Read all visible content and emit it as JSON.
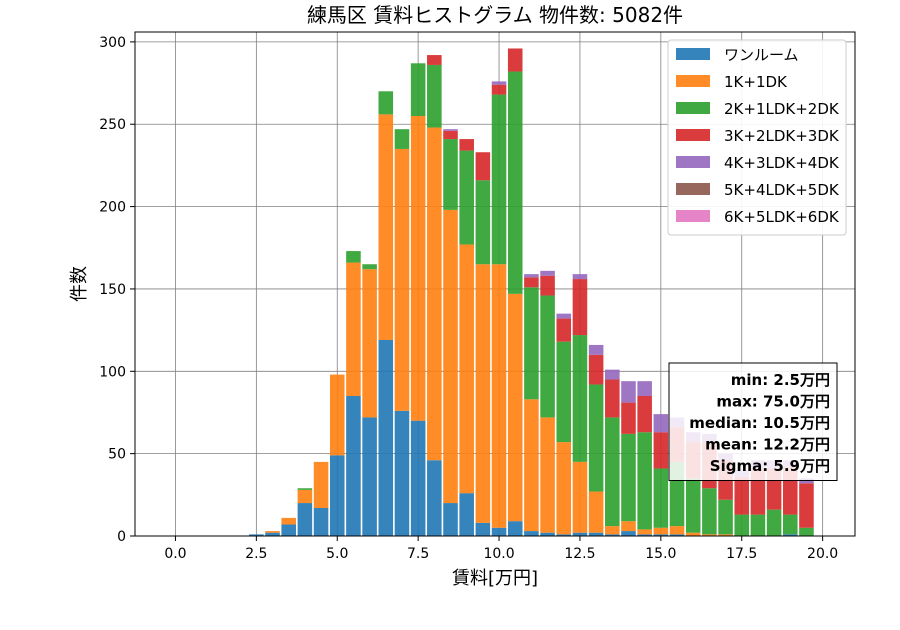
{
  "chart_data": {
    "type": "bar",
    "stacked": true,
    "title": "練馬区 賃料ヒストグラム 物件数: 5082件",
    "xlabel": "賃料[万円]",
    "ylabel": "件数",
    "xlim": [
      -1.25,
      21.0
    ],
    "ylim": [
      0,
      306
    ],
    "xticks": [
      0.0,
      2.5,
      5.0,
      7.5,
      10.0,
      12.5,
      15.0,
      17.5,
      20.0
    ],
    "xtick_labels": [
      "0.0",
      "2.5",
      "5.0",
      "7.5",
      "10.0",
      "12.5",
      "15.0",
      "17.5",
      "20.0"
    ],
    "yticks": [
      0,
      50,
      100,
      150,
      200,
      250,
      300
    ],
    "ytick_labels": [
      "0",
      "50",
      "100",
      "150",
      "200",
      "250",
      "300"
    ],
    "grid": true,
    "legend_position": "top-right",
    "bin_width": 0.5,
    "x": [
      2.5,
      3.0,
      3.5,
      4.0,
      4.5,
      5.0,
      5.5,
      6.0,
      6.5,
      7.0,
      7.5,
      8.0,
      8.5,
      9.0,
      9.5,
      10.0,
      10.5,
      11.0,
      11.5,
      12.0,
      12.5,
      13.0,
      13.5,
      14.0,
      14.5,
      15.0,
      15.5,
      16.0,
      16.5,
      17.0,
      17.5,
      18.0,
      18.5,
      19.0,
      19.5
    ],
    "series": [
      {
        "name": "ワンルーム",
        "color": "#1f77b4",
        "values": [
          1,
          2,
          7,
          20,
          17,
          49,
          85,
          72,
          119,
          76,
          70,
          46,
          20,
          26,
          8,
          5,
          9,
          3,
          2,
          1,
          2,
          2,
          1,
          3,
          1,
          1,
          1,
          0,
          0,
          0,
          0,
          0,
          0,
          1,
          0
        ]
      },
      {
        "name": "1K+1DK",
        "color": "#ff7f0e",
        "values": [
          0,
          1,
          4,
          8,
          28,
          49,
          81,
          90,
          137,
          159,
          185,
          202,
          178,
          151,
          157,
          160,
          138,
          80,
          70,
          56,
          43,
          25,
          5,
          6,
          3,
          4,
          5,
          2,
          1,
          1,
          0,
          0,
          0,
          0,
          0
        ]
      },
      {
        "name": "2K+1LDK+2DK",
        "color": "#2ca02c",
        "values": [
          0,
          0,
          0,
          1,
          0,
          0,
          7,
          3,
          14,
          12,
          32,
          38,
          43,
          57,
          51,
          103,
          135,
          68,
          74,
          61,
          77,
          65,
          66,
          53,
          59,
          36,
          39,
          33,
          28,
          21,
          13,
          13,
          16,
          12,
          5
        ]
      },
      {
        "name": "3K+2LDK+3DK",
        "color": "#d62728",
        "values": [
          0,
          0,
          0,
          0,
          0,
          0,
          0,
          0,
          0,
          0,
          0,
          6,
          5,
          7,
          17,
          6,
          14,
          6,
          12,
          14,
          34,
          18,
          23,
          19,
          22,
          22,
          21,
          22,
          28,
          24,
          23,
          28,
          25,
          29,
          27
        ]
      },
      {
        "name": "4K+3LDK+4DK",
        "color": "#9467bd",
        "values": [
          0,
          0,
          0,
          0,
          0,
          0,
          0,
          0,
          0,
          0,
          0,
          0,
          1,
          0,
          0,
          2,
          0,
          2,
          3,
          3,
          3,
          6,
          6,
          13,
          9,
          11,
          6,
          6,
          5,
          4,
          4,
          5,
          5,
          4,
          3
        ]
      },
      {
        "name": "5K+4LDK+5DK",
        "color": "#8c564b",
        "values": [
          0,
          0,
          0,
          0,
          0,
          0,
          0,
          0,
          0,
          0,
          0,
          0,
          0,
          0,
          0,
          0,
          0,
          0,
          0,
          0,
          0,
          0,
          0,
          0,
          0,
          0,
          0,
          0,
          0,
          0,
          0,
          0,
          0,
          0,
          0
        ]
      },
      {
        "name": "6K+5LDK+6DK",
        "color": "#e377c2",
        "values": [
          0,
          0,
          0,
          0,
          0,
          0,
          0,
          0,
          0,
          0,
          0,
          0,
          0,
          0,
          0,
          0,
          0,
          0,
          0,
          0,
          0,
          0,
          0,
          0,
          0,
          0,
          0,
          0,
          0,
          0,
          0,
          0,
          0,
          0,
          0
        ]
      }
    ],
    "stats_box": {
      "lines": [
        "min: 2.5万円",
        "max: 75.0万円",
        "median: 10.5万円",
        "mean: 12.2万円",
        "Sigma: 5.9万円"
      ]
    }
  }
}
